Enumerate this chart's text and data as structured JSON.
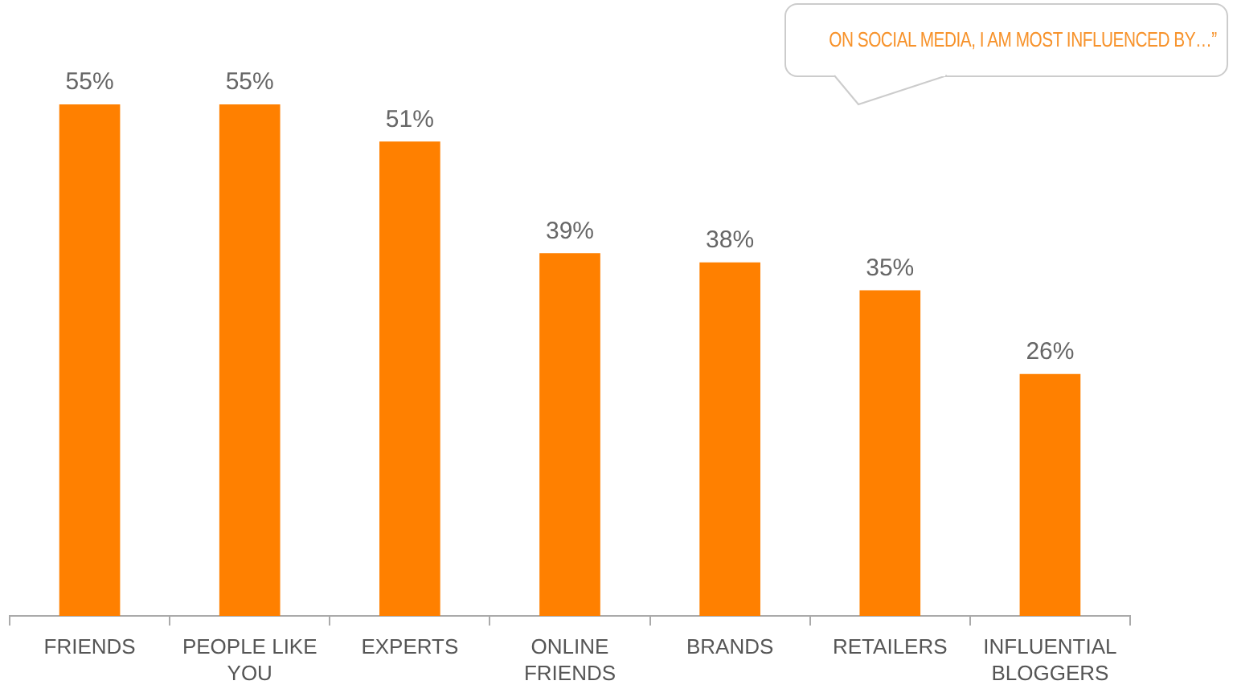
{
  "chart_data": {
    "type": "bar",
    "title": "ON SOCIAL MEDIA, I AM MOST INFLUENCED BY…”",
    "categories": [
      "FRIENDS",
      "PEOPLE LIKE YOU",
      "EXPERTS",
      "ONLINE FRIENDS",
      "BRANDS",
      "RETAILERS",
      "INFLUENTIAL BLOGGERS"
    ],
    "values": [
      55,
      55,
      51,
      39,
      38,
      35,
      26
    ],
    "value_labels": [
      "55%",
      "55%",
      "51%",
      "39%",
      "38%",
      "35%",
      "26%"
    ],
    "color": "#ff8000",
    "tick_labels": "x",
    "grid": false,
    "legend": false
  }
}
